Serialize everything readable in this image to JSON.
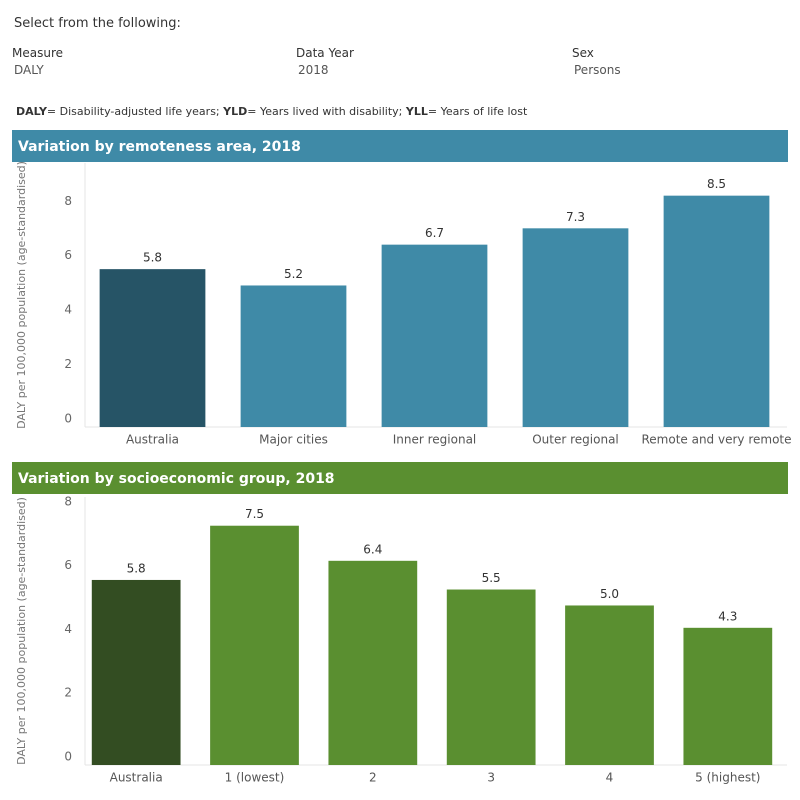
{
  "header": {
    "prompt": "Select from the following:"
  },
  "filters": [
    {
      "label": "Measure",
      "value": "DALY"
    },
    {
      "label": "Data Year",
      "value": "2018"
    },
    {
      "label": "Sex",
      "value": "Persons"
    }
  ],
  "note": [
    {
      "term": "DALY",
      "text": "= Disability-adjusted life years;"
    },
    {
      "term": "YLD",
      "text": "= Years lived with disability;"
    },
    {
      "term": "YLL",
      "text": "= Years of life lost"
    }
  ],
  "chart_data": [
    {
      "type": "bar",
      "title": "Variation by remoteness area, 2018",
      "title_color": "#3f8aa7",
      "y_label": "DALY per 100,000 population (age-standardised)",
      "categories": [
        "Australia",
        "Major cities",
        "Inner regional",
        "Outer regional",
        "Remote and very remote"
      ],
      "values": [
        5.8,
        5.2,
        6.7,
        7.3,
        8.5
      ],
      "colors": [
        "#265466",
        "#3f8aa7",
        "#3f8aa7",
        "#3f8aa7",
        "#3f8aa7"
      ],
      "ylim": [
        0,
        9.7
      ],
      "yticks": [
        0,
        2,
        4,
        6,
        8
      ],
      "grid": false
    },
    {
      "type": "bar",
      "title": "Variation by socioeconomic group, 2018",
      "title_color": "#5a8f30",
      "y_label": "DALY per 100,000 population (age-standardised)",
      "categories": [
        "Australia",
        "1 (lowest)",
        "2",
        "3",
        "4",
        "5 (highest)"
      ],
      "values": [
        5.8,
        7.5,
        6.4,
        5.5,
        5.0,
        4.3
      ],
      "value_labels": [
        "5.8",
        "7.5",
        "6.4",
        "5.5",
        "5.0",
        "4.3"
      ],
      "colors": [
        "#334d22",
        "#5a8f30",
        "#5a8f30",
        "#5a8f30",
        "#5a8f30",
        "#5a8f30"
      ],
      "ylim": [
        0,
        8.4
      ],
      "yticks": [
        0,
        2,
        4,
        6,
        8
      ],
      "grid": false
    }
  ]
}
